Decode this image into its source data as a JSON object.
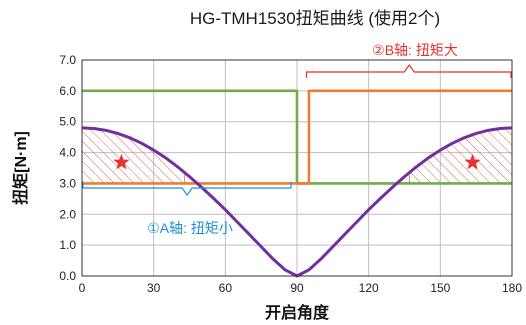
{
  "chart_data": {
    "type": "line",
    "title": "HG-TMH1530扭矩曲线 (使用2个)",
    "xlabel": "开启角度",
    "ylabel": "扭矩[N·m]",
    "xlim": [
      0,
      180
    ],
    "ylim": [
      0,
      7
    ],
    "xticks": [
      0,
      30,
      60,
      90,
      120,
      150,
      180
    ],
    "yticks": [
      0,
      1,
      2,
      3,
      4,
      5,
      6,
      7
    ],
    "ytick_labels": [
      "0.0",
      "1.0",
      "2.0",
      "3.0",
      "4.0",
      "5.0",
      "6.0",
      "7.0"
    ],
    "grid": true,
    "series": [
      {
        "color": "#7030a0",
        "x": [
          0,
          5,
          10,
          15,
          20,
          25,
          30,
          35,
          40,
          45,
          50,
          55,
          60,
          65,
          70,
          75,
          80,
          85,
          90,
          95,
          100,
          105,
          110,
          115,
          120,
          125,
          130,
          135,
          140,
          145,
          150,
          155,
          160,
          165,
          170,
          175,
          180
        ],
        "y": [
          4.8,
          4.78,
          4.72,
          4.62,
          4.48,
          4.3,
          4.08,
          3.83,
          3.54,
          3.22,
          2.88,
          2.52,
          2.15,
          1.75,
          1.35,
          0.95,
          0.55,
          0.2,
          0.0,
          0.2,
          0.55,
          0.95,
          1.35,
          1.75,
          2.15,
          2.52,
          2.88,
          3.22,
          3.54,
          3.83,
          4.08,
          4.3,
          4.48,
          4.62,
          4.72,
          4.78,
          4.8
        ]
      },
      {
        "color": "#70ad47",
        "x": [
          0,
          90,
          90,
          180
        ],
        "y": [
          6.0,
          6.0,
          3.0,
          3.0
        ]
      },
      {
        "color": "#ed7d31",
        "x": [
          0,
          90,
          95,
          95,
          180
        ],
        "y": [
          3.0,
          3.0,
          3.0,
          6.0,
          6.0
        ]
      }
    ],
    "annotations": [
      {
        "text": "①A轴: 扭矩小",
        "color": "#1f8fd6"
      },
      {
        "text": "②B轴: 扭矩大",
        "color": "#e83030"
      }
    ],
    "colors": {
      "hatch": "#e06060",
      "star": "#e8312a"
    }
  }
}
